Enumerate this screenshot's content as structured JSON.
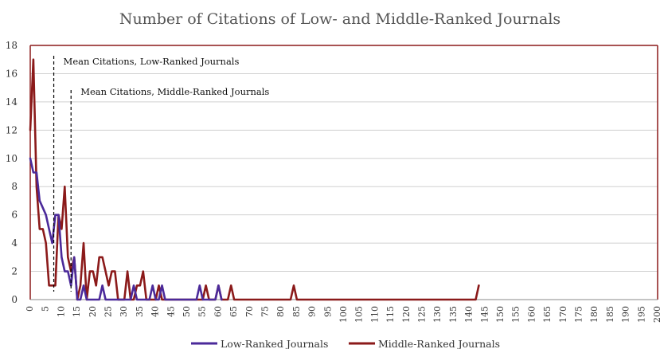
{
  "chart_data": {
    "type": "line",
    "title": "Number of Citations of Low- and Middle-Ranked Journals",
    "xlabel": "",
    "ylabel": "",
    "xlim": [
      0,
      200
    ],
    "ylim": [
      0,
      18
    ],
    "x_ticks": [
      0,
      5,
      10,
      15,
      20,
      25,
      30,
      35,
      40,
      45,
      50,
      55,
      60,
      65,
      70,
      75,
      80,
      85,
      90,
      95,
      100,
      105,
      110,
      115,
      120,
      125,
      130,
      135,
      140,
      145,
      150,
      155,
      160,
      165,
      170,
      175,
      180,
      185,
      190,
      195,
      200
    ],
    "y_ticks": [
      0,
      2,
      4,
      6,
      8,
      10,
      12,
      14,
      16,
      18
    ],
    "grid": "horizontal",
    "legend_position": "bottom",
    "series": [
      {
        "name": "Low-Ranked Journals",
        "color": "#4b2a9a",
        "points": [
          [
            0,
            10
          ],
          [
            1,
            9
          ],
          [
            2,
            9
          ],
          [
            3,
            7
          ],
          [
            4,
            6.5
          ],
          [
            5,
            6
          ],
          [
            6,
            5
          ],
          [
            7,
            4
          ],
          [
            8,
            6
          ],
          [
            9,
            6
          ],
          [
            10,
            3
          ],
          [
            11,
            2
          ],
          [
            12,
            2
          ],
          [
            13,
            1
          ],
          [
            14,
            3
          ],
          [
            15,
            0
          ],
          [
            16,
            0
          ],
          [
            17,
            1
          ],
          [
            18,
            0
          ],
          [
            19,
            0
          ],
          [
            20,
            0
          ],
          [
            21,
            0
          ],
          [
            22,
            0
          ],
          [
            23,
            1
          ],
          [
            24,
            0
          ],
          [
            25,
            0
          ],
          [
            26,
            0
          ],
          [
            27,
            0
          ],
          [
            28,
            0
          ],
          [
            29,
            0
          ],
          [
            30,
            0
          ],
          [
            31,
            0
          ],
          [
            32,
            0
          ],
          [
            33,
            1
          ],
          [
            34,
            0
          ],
          [
            35,
            0
          ],
          [
            36,
            0
          ],
          [
            37,
            0
          ],
          [
            38,
            0
          ],
          [
            39,
            1
          ],
          [
            40,
            0
          ],
          [
            41,
            0
          ],
          [
            42,
            1
          ],
          [
            43,
            0
          ],
          [
            44,
            0
          ],
          [
            45,
            0
          ],
          [
            46,
            0
          ],
          [
            47,
            0
          ],
          [
            48,
            0
          ],
          [
            49,
            0
          ],
          [
            50,
            0
          ],
          [
            51,
            0
          ],
          [
            52,
            0
          ],
          [
            53,
            0
          ],
          [
            54,
            1
          ],
          [
            55,
            0
          ],
          [
            56,
            0
          ],
          [
            57,
            0
          ],
          [
            58,
            0
          ],
          [
            59,
            0
          ],
          [
            60,
            1
          ],
          [
            61,
            0
          ]
        ]
      },
      {
        "name": "Middle-Ranked Journals",
        "color": "#8b1a1a",
        "points": [
          [
            0,
            12
          ],
          [
            1,
            17
          ],
          [
            2,
            8
          ],
          [
            3,
            5
          ],
          [
            4,
            5
          ],
          [
            5,
            4
          ],
          [
            6,
            1
          ],
          [
            7,
            1
          ],
          [
            8,
            1
          ],
          [
            9,
            6
          ],
          [
            10,
            5
          ],
          [
            11,
            8
          ],
          [
            12,
            3
          ],
          [
            13,
            2
          ],
          [
            14,
            3
          ],
          [
            15,
            0
          ],
          [
            16,
            1
          ],
          [
            17,
            4
          ],
          [
            18,
            0
          ],
          [
            19,
            2
          ],
          [
            20,
            2
          ],
          [
            21,
            1
          ],
          [
            22,
            3
          ],
          [
            23,
            3
          ],
          [
            24,
            2
          ],
          [
            25,
            1
          ],
          [
            26,
            2
          ],
          [
            27,
            2
          ],
          [
            28,
            0
          ],
          [
            29,
            0
          ],
          [
            30,
            0
          ],
          [
            31,
            2
          ],
          [
            32,
            0
          ],
          [
            33,
            0
          ],
          [
            34,
            1
          ],
          [
            35,
            1
          ],
          [
            36,
            2
          ],
          [
            37,
            0
          ],
          [
            38,
            0
          ],
          [
            39,
            0
          ],
          [
            40,
            0
          ],
          [
            41,
            1
          ],
          [
            42,
            0
          ],
          [
            43,
            0
          ],
          [
            55,
            0
          ],
          [
            56,
            1
          ],
          [
            57,
            0
          ],
          [
            58,
            0
          ],
          [
            59,
            0
          ],
          [
            60,
            1
          ],
          [
            61,
            0
          ],
          [
            62,
            0
          ],
          [
            63,
            0
          ],
          [
            64,
            1
          ],
          [
            65,
            0
          ],
          [
            66,
            0
          ],
          [
            80,
            0
          ],
          [
            83,
            0
          ],
          [
            84,
            1
          ],
          [
            85,
            0
          ],
          [
            86,
            0
          ],
          [
            140,
            0
          ],
          [
            142,
            0
          ],
          [
            143,
            1
          ]
        ]
      }
    ],
    "annotations": [
      {
        "text": "Mean Citations, Low-Ranked Journals",
        "x": 7.5,
        "style": "dashed vertical line"
      },
      {
        "text": "Mean Citations, Middle-Ranked Journals",
        "x": 13.0,
        "style": "dashed vertical line"
      }
    ]
  }
}
